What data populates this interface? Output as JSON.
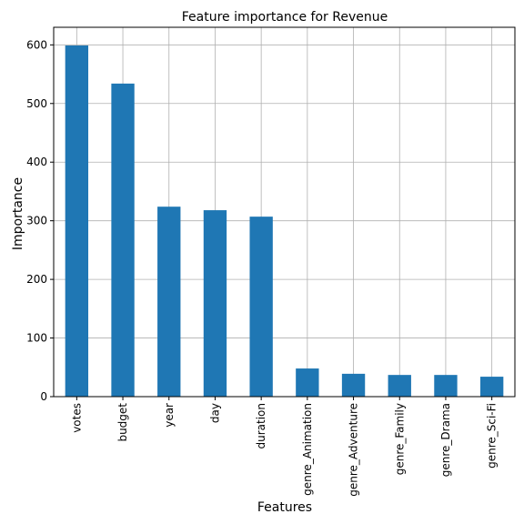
{
  "chart_data": {
    "type": "bar",
    "title": "Feature importance for Revenue",
    "xlabel": "Features",
    "ylabel": "Importance",
    "categories": [
      "votes",
      "budget",
      "year",
      "day",
      "duration",
      "genre_Animation",
      "genre_Adventure",
      "genre_Family",
      "genre_Drama",
      "genre_Sci-Fi"
    ],
    "values": [
      599,
      534,
      324,
      318,
      307,
      48,
      39,
      37,
      37,
      34
    ],
    "ylim": [
      0,
      630
    ],
    "yticks": [
      0,
      100,
      200,
      300,
      400,
      500,
      600
    ],
    "grid": true,
    "bar_color": "#1f77b4"
  }
}
